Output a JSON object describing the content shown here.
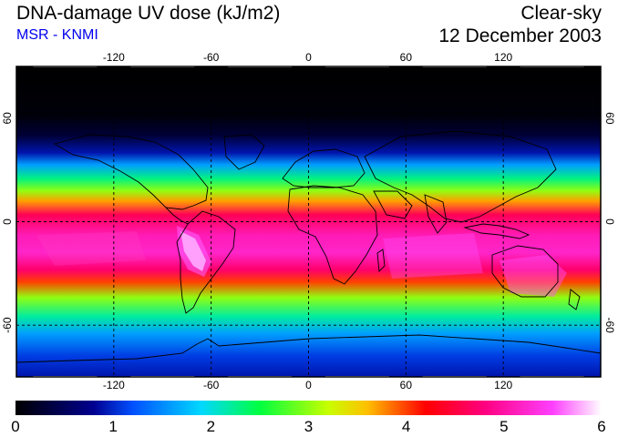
{
  "header": {
    "title": "DNA-damage UV dose (kJ/m2)",
    "source": "MSR - KNMI",
    "condition": "Clear-sky",
    "date": "12 December 2003"
  },
  "colors": {
    "source_text": "#0000ee",
    "grid": "#000000",
    "coast": "#000000"
  },
  "map": {
    "lon_ticks": [
      "-120",
      "-60",
      "0",
      "60",
      "120"
    ],
    "lat_ticks": [
      "60",
      "0",
      "-60"
    ],
    "lon_values": [
      -120,
      -60,
      0,
      60,
      120
    ],
    "lat_values": [
      60,
      0,
      -60
    ],
    "lon_range": [
      -180,
      180
    ],
    "lat_range": [
      -90,
      90
    ]
  },
  "colorbar": {
    "labels": [
      "0",
      "1",
      "2",
      "3",
      "4",
      "5",
      "6"
    ],
    "min": 0,
    "max": 6,
    "stops": [
      {
        "v": 0.0,
        "c": "#000000"
      },
      {
        "v": 0.8,
        "c": "#000090"
      },
      {
        "v": 1.2,
        "c": "#0050ff"
      },
      {
        "v": 1.9,
        "c": "#00d8ff"
      },
      {
        "v": 2.5,
        "c": "#00ff40"
      },
      {
        "v": 3.2,
        "c": "#c8ff00"
      },
      {
        "v": 3.6,
        "c": "#ffc000"
      },
      {
        "v": 4.2,
        "c": "#ff0000"
      },
      {
        "v": 4.8,
        "c": "#ff0080"
      },
      {
        "v": 5.5,
        "c": "#ff40ff"
      },
      {
        "v": 6.0,
        "c": "#ffffff"
      }
    ]
  },
  "dose_profile": [
    {
      "lat": 90,
      "v": 0.0
    },
    {
      "lat": 62,
      "v": 0.05
    },
    {
      "lat": 50,
      "v": 0.3
    },
    {
      "lat": 40,
      "v": 0.9
    },
    {
      "lat": 33,
      "v": 1.6
    },
    {
      "lat": 25,
      "v": 2.3
    },
    {
      "lat": 18,
      "v": 3.0
    },
    {
      "lat": 12,
      "v": 3.7
    },
    {
      "lat": 4,
      "v": 4.6
    },
    {
      "lat": -8,
      "v": 5.1
    },
    {
      "lat": -18,
      "v": 5.2
    },
    {
      "lat": -28,
      "v": 4.7
    },
    {
      "lat": -35,
      "v": 4.0
    },
    {
      "lat": -44,
      "v": 3.0
    },
    {
      "lat": -55,
      "v": 2.2
    },
    {
      "lat": -65,
      "v": 1.6
    },
    {
      "lat": -78,
      "v": 1.1
    },
    {
      "lat": -90,
      "v": 0.9
    }
  ]
}
